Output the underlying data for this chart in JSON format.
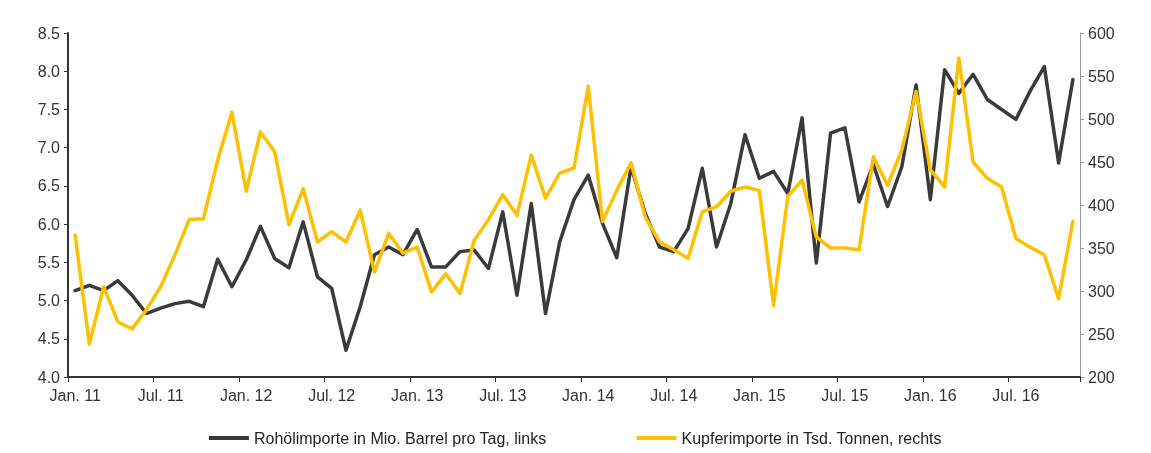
{
  "chart_data": {
    "type": "line",
    "categories": [
      "Jan. 11",
      null,
      null,
      null,
      null,
      null,
      "Jul. 11",
      null,
      null,
      null,
      null,
      null,
      "Jan. 12",
      null,
      null,
      null,
      null,
      null,
      "Jul. 12",
      null,
      null,
      null,
      null,
      null,
      "Jan. 13",
      null,
      null,
      null,
      null,
      null,
      "Jul. 13",
      null,
      null,
      null,
      null,
      null,
      "Jan. 14",
      null,
      null,
      null,
      null,
      null,
      "Jul. 14",
      null,
      null,
      null,
      null,
      null,
      "Jan. 15",
      null,
      null,
      null,
      null,
      null,
      "Jul. 15",
      null,
      null,
      null,
      null,
      null,
      "Jan. 16",
      null,
      null,
      null,
      null,
      null,
      "Jul. 16",
      null,
      null,
      null,
      null
    ],
    "series": [
      {
        "name": "Rohölimporte in Mio. Barrel pro Tag, links",
        "color": "#3a3a3a",
        "values": [
          5.13,
          5.2,
          5.13,
          5.26,
          5.07,
          4.83,
          4.9,
          4.96,
          4.99,
          4.92,
          5.54,
          5.18,
          5.53,
          5.97,
          5.55,
          5.43,
          6.03,
          5.31,
          5.16,
          4.35,
          4.92,
          5.6,
          5.7,
          5.6,
          5.93,
          5.44,
          5.44,
          5.64,
          5.66,
          5.42,
          6.16,
          5.07,
          6.27,
          4.83,
          5.77,
          6.32,
          6.64,
          6.01,
          5.56,
          6.75,
          6.14,
          5.7,
          5.64,
          5.94,
          6.73,
          5.7,
          6.27,
          7.17,
          6.6,
          6.69,
          6.4,
          7.39,
          5.49,
          7.19,
          7.26,
          6.29,
          6.78,
          6.23,
          6.75,
          7.82,
          6.32,
          8.02,
          7.71,
          7.96,
          7.63,
          7.5,
          7.37,
          7.74,
          8.06,
          6.8,
          7.89
        ]
      },
      {
        "name": "Kupferimporte in Tsd. Tonnen, rechts",
        "color": "#ffc000",
        "axis": "y2",
        "values": [
          365,
          238,
          305,
          264,
          256,
          278,
          305,
          342,
          383,
          384,
          452,
          508,
          416,
          485,
          462,
          377,
          419,
          357,
          369,
          357,
          394,
          322,
          367,
          344,
          351,
          299,
          320,
          297,
          359,
          383,
          412,
          388,
          458,
          408,
          437,
          443,
          538,
          381,
          417,
          449,
          386,
          357,
          348,
          338,
          392,
          398,
          416,
          421,
          417,
          283,
          410,
          429,
          363,
          350,
          350,
          348,
          456,
          423,
          464,
          532,
          441,
          421,
          571,
          450,
          431,
          421,
          361,
          351,
          342,
          291,
          381
        ]
      }
    ],
    "ylim": [
      4,
      8.5
    ],
    "yticks": [
      {
        "value": 4,
        "label": "4.0"
      },
      4.5,
      {
        "value": 5,
        "label": "5.0"
      },
      5.5,
      {
        "value": 6,
        "label": "6.0"
      },
      6.5,
      {
        "value": 7,
        "label": "7.0"
      },
      7.5,
      {
        "value": 8,
        "label": "8.0"
      },
      8.5
    ],
    "y2lim": [
      200,
      600
    ],
    "y2ticks": [
      200,
      250,
      300,
      350,
      400,
      450,
      500,
      550,
      600
    ],
    "grid": false,
    "legend": "bottom",
    "marker": "none",
    "line_style": "solid"
  }
}
